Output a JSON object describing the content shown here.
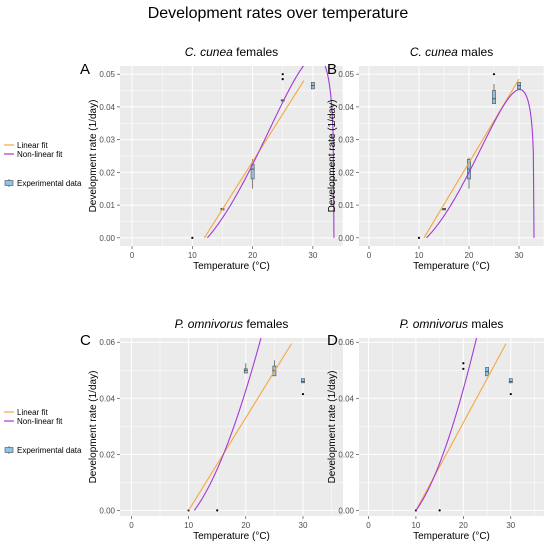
{
  "figure_title": "Development rates over temperature",
  "legend": {
    "linear": "Linear fit",
    "nonlinear": "Non-linear fit",
    "experimental": "Experimental data"
  },
  "colors": {
    "panel_bg": "#ebebeb",
    "grid": "#ffffff",
    "linear": "#f5a742",
    "nonlinear": "#a43ad6",
    "box_fill": "#8ec5e6",
    "box_line": "#4d4d4d",
    "point": "#000000"
  },
  "chart_data": [
    {
      "type": "line",
      "panel": "A",
      "species": "C. cunea",
      "sex": "females",
      "xlabel": "Temperature (°C)",
      "ylabel": "Development rate (1/day)",
      "xlim": [
        -2,
        35
      ],
      "ylim": [
        -0.0025,
        0.0525
      ],
      "xticks": [
        0,
        10,
        20,
        30
      ],
      "yticks": [
        0.0,
        0.01,
        0.02,
        0.03,
        0.04,
        0.05
      ],
      "ytick_labels": [
        "0.00",
        "0.01",
        "0.02",
        "0.03",
        "0.04",
        "0.05"
      ],
      "linear_fit": {
        "x": [
          12,
          28.5
        ],
        "y": [
          0.0,
          0.048
        ]
      },
      "nonlinear_fit": {
        "tmin": 12.5,
        "tmax": 33.5,
        "a": 7.6e-05,
        "b": 0.26,
        "x_end": 33.5
      },
      "boxes": [
        {
          "x": 15,
          "q1": 0.0085,
          "median": 0.0088,
          "q3": 0.009,
          "lo": 0.0085,
          "hi": 0.009
        },
        {
          "x": 20,
          "q1": 0.018,
          "median": 0.021,
          "q3": 0.0225,
          "lo": 0.015,
          "hi": 0.024
        },
        {
          "x": 25,
          "q1": 0.0418,
          "median": 0.042,
          "q3": 0.0422,
          "lo": 0.0418,
          "hi": 0.0422
        },
        {
          "x": 30,
          "q1": 0.0455,
          "median": 0.0465,
          "q3": 0.0475,
          "lo": 0.0455,
          "hi": 0.0475
        }
      ],
      "outliers": [
        {
          "x": 10,
          "y": 0.0
        },
        {
          "x": 25,
          "y": 0.05
        },
        {
          "x": 25,
          "y": 0.0485
        }
      ]
    },
    {
      "type": "line",
      "panel": "B",
      "species": "C. cunea",
      "sex": "males",
      "xlabel": "Temperature (°C)",
      "ylabel": "Development rate (1/day)",
      "xlim": [
        -2,
        35
      ],
      "ylim": [
        -0.0025,
        0.0525
      ],
      "xticks": [
        0,
        10,
        20,
        30
      ],
      "yticks": [
        0.0,
        0.01,
        0.02,
        0.03,
        0.04,
        0.05
      ],
      "ytick_labels": [
        "0.00",
        "0.01",
        "0.02",
        "0.03",
        "0.04",
        "0.05"
      ],
      "linear_fit": {
        "x": [
          11,
          30
        ],
        "y": [
          0.0,
          0.0485
        ]
      },
      "nonlinear_fit": {
        "tmin": 11.5,
        "tmax": 33,
        "a": 6.2e-05,
        "b": 0.25,
        "x_end": 33
      },
      "boxes": [
        {
          "x": 15,
          "q1": 0.0085,
          "median": 0.0088,
          "q3": 0.009,
          "lo": 0.0085,
          "hi": 0.009
        },
        {
          "x": 20,
          "q1": 0.018,
          "median": 0.021,
          "q3": 0.024,
          "lo": 0.015,
          "hi": 0.0245
        },
        {
          "x": 25,
          "q1": 0.041,
          "median": 0.0425,
          "q3": 0.045,
          "lo": 0.041,
          "hi": 0.047
        },
        {
          "x": 30,
          "q1": 0.0455,
          "median": 0.0465,
          "q3": 0.0475,
          "lo": 0.0455,
          "hi": 0.0475
        }
      ],
      "outliers": [
        {
          "x": 10,
          "y": 0.0
        },
        {
          "x": 25,
          "y": 0.05
        }
      ]
    },
    {
      "type": "line",
      "panel": "C",
      "species": "P. omnivorus",
      "sex": "females",
      "xlabel": "Temperature (°C)",
      "ylabel": "Development rate (1/day)",
      "xlim": [
        -2,
        37
      ],
      "ylim": [
        -0.002,
        0.0615
      ],
      "xticks": [
        0,
        10,
        20,
        30
      ],
      "yticks": [
        0.0,
        0.02,
        0.04,
        0.06
      ],
      "ytick_labels": [
        "0.00",
        "0.02",
        "0.04",
        "0.06"
      ],
      "linear_fit": {
        "x": [
          10,
          28
        ],
        "y": [
          0.0,
          0.0595
        ]
      },
      "nonlinear_fit": {
        "tmin": 11,
        "tmax": 40,
        "a": 0.000154,
        "b": 0.145,
        "x_end": 35.5
      },
      "boxes": [
        {
          "x": 20,
          "q1": 0.049,
          "median": 0.05,
          "q3": 0.0505,
          "lo": 0.049,
          "hi": 0.0525
        },
        {
          "x": 25,
          "q1": 0.048,
          "median": 0.05,
          "q3": 0.0515,
          "lo": 0.048,
          "hi": 0.0535
        },
        {
          "x": 30,
          "q1": 0.0455,
          "median": 0.046,
          "q3": 0.047,
          "lo": 0.0455,
          "hi": 0.047
        }
      ],
      "outliers": [
        {
          "x": 10,
          "y": 0.0
        },
        {
          "x": 15,
          "y": 0.0
        },
        {
          "x": 30,
          "y": 0.0415
        }
      ]
    },
    {
      "type": "line",
      "panel": "D",
      "species": "P. omnivorus",
      "sex": "males",
      "xlabel": "Temperature (°C)",
      "ylabel": "Development rate (1/day)",
      "xlim": [
        -2,
        37
      ],
      "ylim": [
        -0.002,
        0.0615
      ],
      "xticks": [
        0,
        10,
        20,
        30
      ],
      "yticks": [
        0.0,
        0.02,
        0.04,
        0.06
      ],
      "ytick_labels": [
        "0.00",
        "0.02",
        "0.04",
        "0.06"
      ],
      "linear_fit": {
        "x": [
          10,
          29
        ],
        "y": [
          0.0,
          0.0595
        ]
      },
      "nonlinear_fit": {
        "tmin": 10,
        "tmax": 40,
        "a": 0.000134,
        "b": 0.16,
        "x_end": 35
      },
      "boxes": [
        {
          "x": 25,
          "q1": 0.048,
          "median": 0.0495,
          "q3": 0.051,
          "lo": 0.048,
          "hi": 0.051
        },
        {
          "x": 30,
          "q1": 0.0455,
          "median": 0.046,
          "q3": 0.047,
          "lo": 0.0455,
          "hi": 0.047
        }
      ],
      "outliers": [
        {
          "x": 10,
          "y": 0.0
        },
        {
          "x": 15,
          "y": 0.0
        },
        {
          "x": 20,
          "y": 0.0525
        },
        {
          "x": 20,
          "y": 0.0505
        },
        {
          "x": 30,
          "y": 0.0415
        }
      ]
    }
  ]
}
